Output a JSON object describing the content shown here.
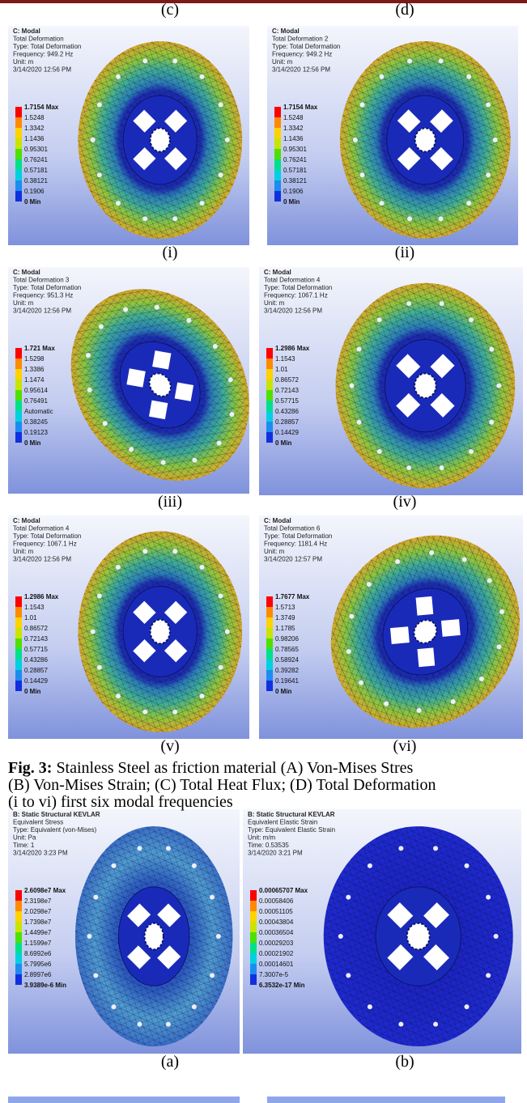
{
  "top_labels": [
    "(c)",
    "(d)"
  ],
  "panels": [
    {
      "label": "(i)",
      "header": [
        "C: Modal",
        "Total Deformation",
        "Type: Total Deformation",
        "Frequency: 949.2 Hz",
        "Unit: m",
        "3/14/2020 12:56 PM"
      ],
      "legend": [
        "1.7154 Max",
        "1.5248",
        "1.3342",
        "1.1436",
        "0.95301",
        "0.76241",
        "0.57181",
        "0.38121",
        "0.1906",
        "0 Min"
      ]
    },
    {
      "label": "(ii)",
      "header": [
        "C: Modal",
        "Total Deformation 2",
        "Type: Total Deformation",
        "Frequency: 949.2 Hz",
        "Unit: m",
        "3/14/2020 12:56 PM"
      ],
      "legend": [
        "1.7154 Max",
        "1.5248",
        "1.3342",
        "1.1436",
        "0.95301",
        "0.76241",
        "0.57181",
        "0.38121",
        "0.1906",
        "0 Min"
      ]
    },
    {
      "label": "(iii)",
      "header": [
        "C: Modal",
        "Total Deformation 3",
        "Type: Total Deformation",
        "Frequency: 951.3 Hz",
        "Unit: m",
        "3/14/2020 12:56 PM"
      ],
      "legend": [
        "1.721 Max",
        "1.5298",
        "1.3386",
        "1.1474",
        "0.95614",
        "0.76491",
        "Automatic",
        "0.38245",
        "0.19123",
        "0 Min"
      ]
    },
    {
      "label": "(iv)",
      "header": [
        "C: Modal",
        "Total Deformation 4",
        "Type: Total Deformation",
        "Frequency: 1067.1 Hz",
        "Unit: m",
        "3/14/2020 12:56 PM"
      ],
      "legend": [
        "1.2986 Max",
        "1.1543",
        "1.01",
        "0.86572",
        "0.72143",
        "0.57715",
        "0.43286",
        "0.28857",
        "0.14429",
        "0 Min"
      ]
    },
    {
      "label": "(v)",
      "header": [
        "C: Modal",
        "Total Deformation 4",
        "Type: Total Deformation",
        "Frequency: 1067.1 Hz",
        "Unit: m",
        "3/14/2020 12:56 PM"
      ],
      "legend": [
        "1.2986 Max",
        "1.1543",
        "1.01",
        "0.86572",
        "0.72143",
        "0.57715",
        "0.43286",
        "0.28857",
        "0.14429",
        "0 Min"
      ]
    },
    {
      "label": "(vi)",
      "header": [
        "C: Modal",
        "Total Deformation 6",
        "Type: Total Deformation",
        "Frequency: 1181.4 Hz",
        "Unit: m",
        "3/14/2020 12:57 PM"
      ],
      "legend": [
        "1.7677 Max",
        "1.5713",
        "1.3749",
        "1.1785",
        "0.98206",
        "0.78565",
        "0.58924",
        "0.39282",
        "0.19641",
        "0 Min"
      ]
    },
    {
      "label": "(a)",
      "header": [
        "B: Static Structural KEVLAR",
        "Equivalent Stress",
        "Type: Equivalent (von-Mises)",
        "Unit: Pa",
        "Time: 1",
        "3/14/2020 3:23 PM"
      ],
      "legend": [
        "2.6098e7 Max",
        "2.3198e7",
        "2.0298e7",
        "1.7398e7",
        "1.4499e7",
        "1.1599e7",
        "8.6992e6",
        "5.7995e6",
        "2.8997e6",
        "3.9389e-6 Min"
      ]
    },
    {
      "label": "(b)",
      "header": [
        "B: Static Structural KEVLAR",
        "Equivalent Elastic Strain",
        "Type: Equivalent Elastic Strain",
        "Unit: m/m",
        "Time: 0.53535",
        "3/14/2020 3:21 PM"
      ],
      "legend": [
        "0.00065707 Max",
        "0.00058406",
        "0.00051105",
        "0.00043804",
        "0.00036504",
        "0.00029203",
        "0.00021902",
        "0.00014601",
        "7.3007e-5",
        "6.3532e-17 Min"
      ]
    }
  ],
  "caption": {
    "label": "Fig. 3:",
    "lines": [
      " Stainless Steel as friction material (A) Von-Mises Stres",
      "(B) Von-Mises Strain; (C) Total Heat Flux; (D) Total Deformation",
      "(i to vi) first six modal frequencies"
    ]
  }
}
